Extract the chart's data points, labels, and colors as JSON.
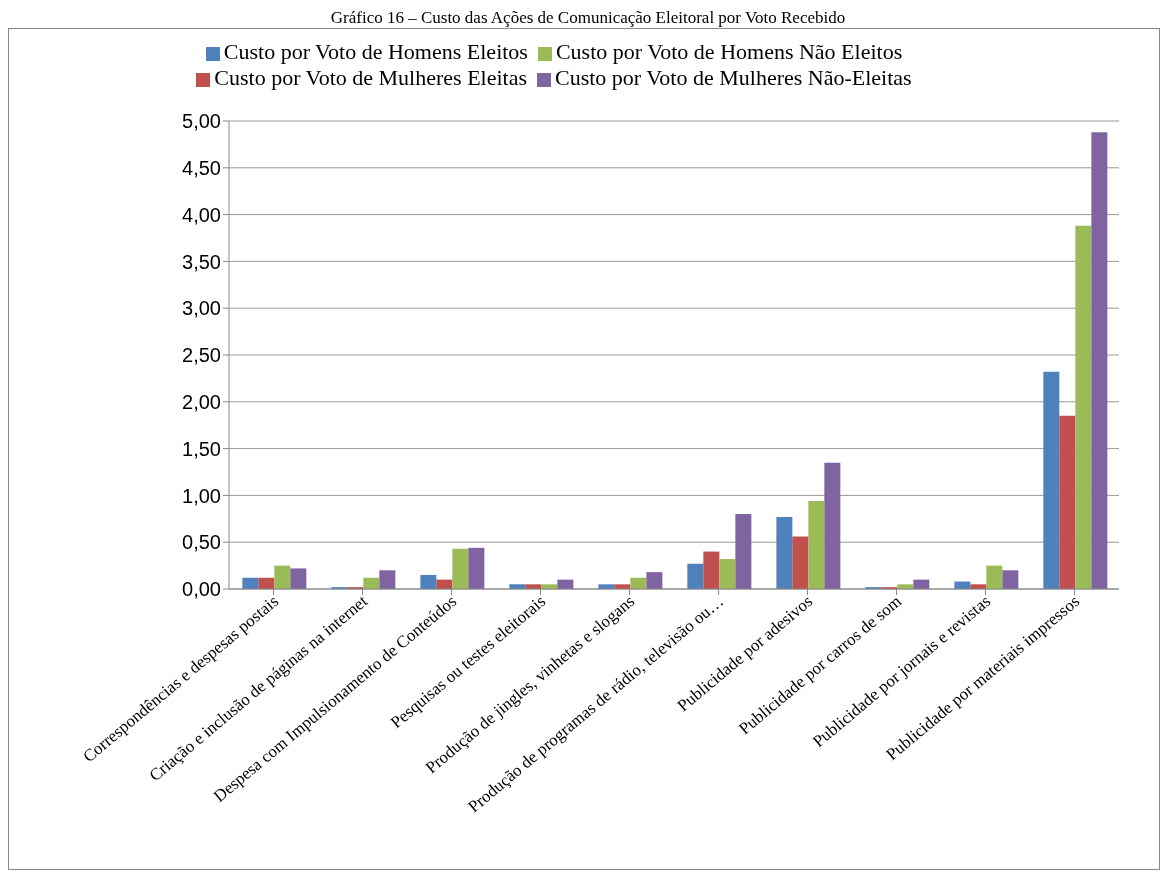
{
  "chart_data": {
    "type": "bar",
    "title": "Gráfico 16 – Custo das Ações de Comunicação Eleitoral por Voto Recebido",
    "categories": [
      "Correspondências e despesas postais",
      "Criação e inclusão de páginas na internet",
      "Despesa com Impulsionamento de Conteúdos",
      "Pesquisas ou testes eleitorais",
      "Produção de jingles, vinhetas e slogans",
      "Produção de programas de rádio, televisão ou…",
      "Publicidade por adesivos",
      "Publicidade por carros de som",
      "Publicidade por jornais e revistas",
      "Publicidade por materiais impressos"
    ],
    "series": [
      {
        "name": "Custo por Voto de Homens Eleitos",
        "color": "#4f81bd",
        "values": [
          0.12,
          0.02,
          0.15,
          0.05,
          0.05,
          0.27,
          0.77,
          0.02,
          0.08,
          2.32
        ]
      },
      {
        "name": "Custo por Voto de Mulheres Eleitas",
        "color": "#c0504d",
        "values": [
          0.12,
          0.02,
          0.1,
          0.05,
          0.05,
          0.4,
          0.56,
          0.02,
          0.05,
          1.85
        ]
      },
      {
        "name": "Custo por Voto de Homens Não Eleitos",
        "color": "#9bbb59",
        "values": [
          0.25,
          0.12,
          0.43,
          0.05,
          0.12,
          0.32,
          0.94,
          0.05,
          0.25,
          3.88
        ]
      },
      {
        "name": "Custo por Voto de Mulheres Não-Eleitas",
        "color": "#8064a2",
        "values": [
          0.22,
          0.2,
          0.44,
          0.1,
          0.18,
          0.8,
          1.35,
          0.1,
          0.2,
          4.88
        ]
      }
    ],
    "ylim": [
      0,
      5
    ],
    "yticks": [
      {
        "value": 0,
        "label": "0,00"
      },
      {
        "value": 0.5,
        "label": "0,50"
      },
      {
        "value": 1,
        "label": "1,00"
      },
      {
        "value": 1.5,
        "label": "1,50"
      },
      {
        "value": 2,
        "label": "2,00"
      },
      {
        "value": 2.5,
        "label": "2,50"
      },
      {
        "value": 3,
        "label": "3,00"
      },
      {
        "value": 3.5,
        "label": "3,50"
      },
      {
        "value": 4,
        "label": "4,00"
      },
      {
        "value": 4.5,
        "label": "4,50"
      },
      {
        "value": 5,
        "label": "5,00"
      }
    ],
    "grid": "y",
    "legend": "top"
  }
}
